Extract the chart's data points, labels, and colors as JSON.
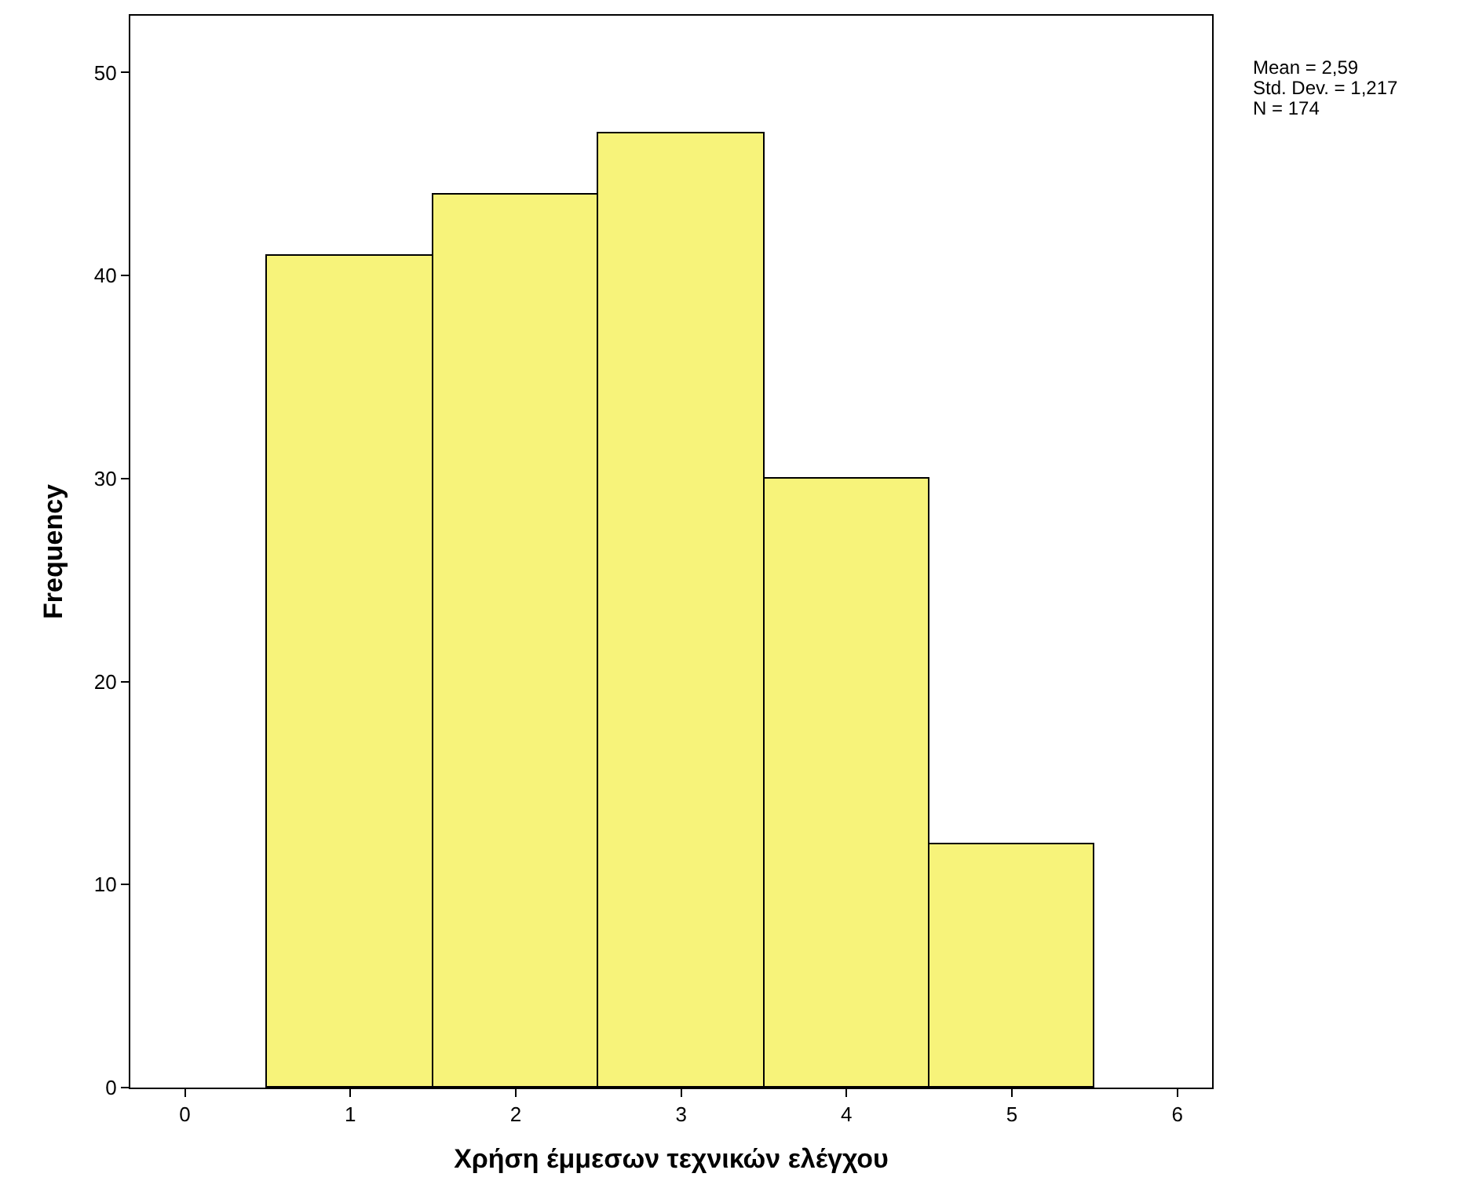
{
  "chart_data": {
    "type": "histogram",
    "xlabel": "Χρήση έμμεσων τεχνικών ελέγχου",
    "ylabel": "Frequency",
    "bins": [
      0.5,
      1.5,
      2.5,
      3.5,
      4.5,
      5.5
    ],
    "values": [
      41,
      44,
      47,
      30,
      12
    ],
    "color": "#f7f37a",
    "xlim": [
      -0.33,
      6.21
    ],
    "xticks": [
      0,
      1,
      2,
      3,
      4,
      5,
      6
    ],
    "ylim": [
      0,
      52.8
    ],
    "yticks": [
      0,
      10,
      20,
      30,
      40,
      50
    ],
    "annotations": [
      "Mean = 2,59",
      "Std. Dev. = 1,217",
      "N = 174"
    ]
  }
}
